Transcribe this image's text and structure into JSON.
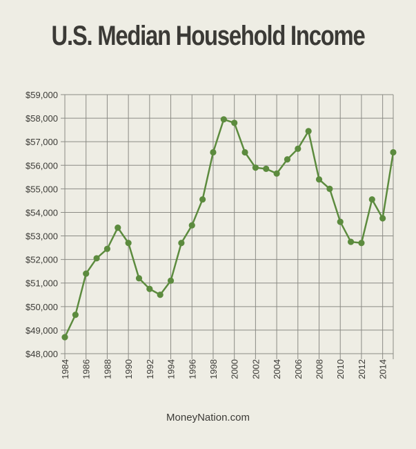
{
  "chart_data": {
    "type": "line",
    "title": "U.S. Median Household Income",
    "xlabel": "",
    "ylabel": "",
    "ylim": [
      48000,
      59000
    ],
    "xlim": [
      1984,
      2015
    ],
    "y_ticks": [
      48000,
      49000,
      50000,
      51000,
      52000,
      53000,
      54000,
      55000,
      56000,
      57000,
      58000,
      59000
    ],
    "y_tick_labels": [
      "$48,000",
      "$49,000",
      "$50,000",
      "$51,000",
      "$52,000",
      "$53,000",
      "$54,000",
      "$55,000",
      "$56,000",
      "$57,000",
      "$58,000",
      "$59,000"
    ],
    "x_ticks": [
      1984,
      1986,
      1988,
      1990,
      1992,
      1994,
      1996,
      1998,
      2000,
      2002,
      2004,
      2006,
      2008,
      2010,
      2012,
      2014
    ],
    "x_tick_labels": [
      "1984",
      "1986",
      "1988",
      "1990",
      "1992",
      "1994",
      "1996",
      "1998",
      "2000",
      "2002",
      "2004",
      "2006",
      "2008",
      "2010",
      "2012",
      "2014"
    ],
    "grid": true,
    "x": [
      1984,
      1985,
      1986,
      1987,
      1988,
      1989,
      1990,
      1991,
      1992,
      1993,
      1994,
      1995,
      1996,
      1997,
      1998,
      1999,
      2000,
      2001,
      2002,
      2003,
      2004,
      2005,
      2006,
      2007,
      2008,
      2009,
      2010,
      2011,
      2012,
      2013,
      2014,
      2015
    ],
    "values": [
      48700,
      49650,
      51400,
      52050,
      52450,
      53350,
      52700,
      51200,
      50750,
      50500,
      51100,
      52700,
      53450,
      54550,
      56550,
      57950,
      57800,
      56550,
      55900,
      55850,
      55650,
      56250,
      56700,
      57450,
      55400,
      55000,
      53600,
      52750,
      52700,
      54550,
      53750,
      56550
    ],
    "colors": {
      "line": "#5c8b3e",
      "marker": "#5c8b3e",
      "grid": "#8a8a84",
      "text": "#3b3a36"
    }
  },
  "footer": {
    "credit": "MoneyNation.com"
  }
}
